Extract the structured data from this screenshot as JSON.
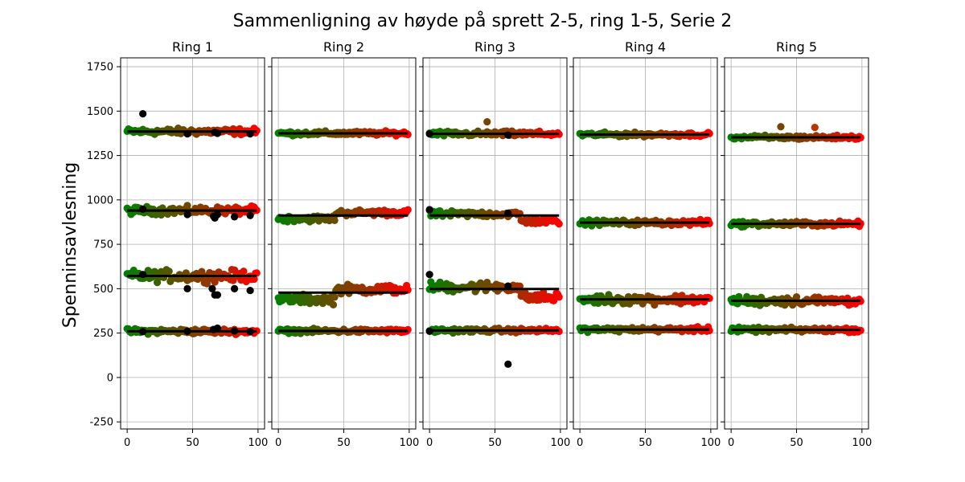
{
  "chart_data": {
    "type": "scatter",
    "title": "Sammenligning av høyde på sprett 2-5, ring 1-5, Serie 2",
    "ylabel": "Spenninsavlesning",
    "xlabel": "",
    "xlim": [
      -5,
      105
    ],
    "ylim": [
      -290,
      1800
    ],
    "xticks": [
      "0",
      "50",
      "100"
    ],
    "yticks": [
      "-250",
      "0",
      "250",
      "500",
      "750",
      "1000",
      "1250",
      "1500",
      "1750"
    ],
    "grid": true,
    "sharey": true,
    "point_color_gradient": [
      "#008000",
      "#555500",
      "#993300",
      "#ff0000"
    ],
    "outlier_color": "#000000",
    "mean_line_color": "#000000",
    "panels": [
      {
        "title": "Ring 1",
        "series": [
          {
            "mean": 1385,
            "spread": 12
          },
          {
            "mean": 940,
            "spread": 15
          },
          {
            "mean": 572,
            "spread": 22
          },
          {
            "mean": 260,
            "spread": 10
          }
        ],
        "outliers": [
          {
            "x": 12,
            "y": 1485
          },
          {
            "x": 46,
            "y": 1372
          },
          {
            "x": 67,
            "y": 1380
          },
          {
            "x": 69,
            "y": 1375
          },
          {
            "x": 94,
            "y": 1372
          },
          {
            "x": 12,
            "y": 948
          },
          {
            "x": 46,
            "y": 918
          },
          {
            "x": 66,
            "y": 908
          },
          {
            "x": 67,
            "y": 898
          },
          {
            "x": 69,
            "y": 918
          },
          {
            "x": 82,
            "y": 905
          },
          {
            "x": 94,
            "y": 912
          },
          {
            "x": 12,
            "y": 580
          },
          {
            "x": 46,
            "y": 500
          },
          {
            "x": 65,
            "y": 500
          },
          {
            "x": 67,
            "y": 465
          },
          {
            "x": 69,
            "y": 465
          },
          {
            "x": 82,
            "y": 500
          },
          {
            "x": 94,
            "y": 490
          },
          {
            "x": 12,
            "y": 258
          },
          {
            "x": 46,
            "y": 260
          },
          {
            "x": 66,
            "y": 270
          },
          {
            "x": 69,
            "y": 278
          },
          {
            "x": 82,
            "y": 262
          },
          {
            "x": 94,
            "y": 258
          }
        ]
      },
      {
        "title": "Ring 2",
        "series": [
          {
            "mean": 1375,
            "spread": 8
          },
          {
            "mean": 912,
            "spread": 12,
            "step": {
              "at": 44,
              "before": 895,
              "after": 928
            }
          },
          {
            "mean": 478,
            "spread": 18,
            "step": {
              "at": 44,
              "before": 440,
              "after": 497
            }
          },
          {
            "mean": 262,
            "spread": 8
          }
        ],
        "outliers": []
      },
      {
        "title": "Ring 3",
        "series": [
          {
            "mean": 1372,
            "spread": 10
          },
          {
            "mean": 912,
            "spread": 12,
            "step": {
              "at": 70,
              "before": 920,
              "after": 880
            }
          },
          {
            "mean": 498,
            "spread": 20,
            "step": {
              "at": 70,
              "before": 510,
              "after": 450
            }
          },
          {
            "mean": 265,
            "spread": 8
          }
        ],
        "outliers": [
          {
            "x": 0,
            "y": 1372
          },
          {
            "x": 60,
            "y": 1365
          },
          {
            "x": 44,
            "y": 1440,
            "color": "#774400"
          },
          {
            "x": 0,
            "y": 945
          },
          {
            "x": 60,
            "y": 925
          },
          {
            "x": 0,
            "y": 580
          },
          {
            "x": 60,
            "y": 515
          },
          {
            "x": 0,
            "y": 260
          },
          {
            "x": 60,
            "y": 75
          }
        ]
      },
      {
        "title": "Ring 4",
        "series": [
          {
            "mean": 1368,
            "spread": 8
          },
          {
            "mean": 872,
            "spread": 10
          },
          {
            "mean": 440,
            "spread": 18
          },
          {
            "mean": 270,
            "spread": 9
          }
        ],
        "outliers": []
      },
      {
        "title": "Ring 5",
        "series": [
          {
            "mean": 1352,
            "spread": 8
          },
          {
            "mean": 865,
            "spread": 10
          },
          {
            "mean": 432,
            "spread": 18
          },
          {
            "mean": 268,
            "spread": 9
          }
        ],
        "outliers": [
          {
            "x": 38,
            "y": 1412,
            "color": "#774400"
          },
          {
            "x": 64,
            "y": 1408,
            "color": "#bb3300"
          }
        ]
      }
    ]
  }
}
